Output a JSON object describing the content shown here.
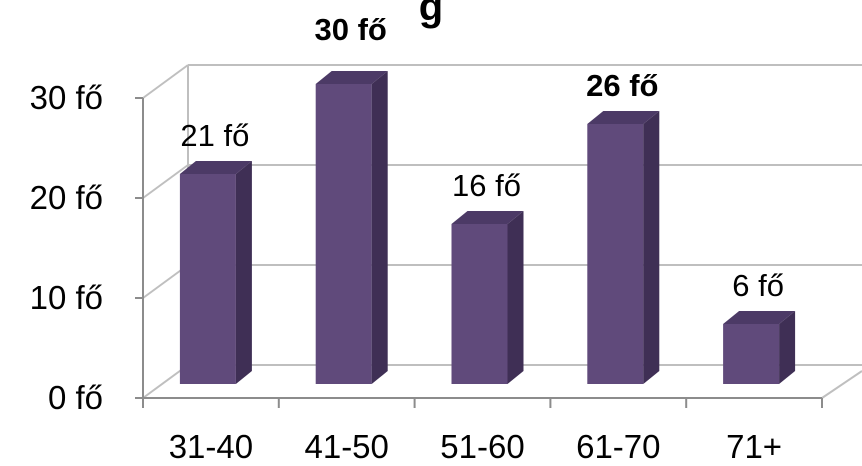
{
  "title_fragment": "g",
  "chart_data": {
    "type": "bar",
    "style": "3d-column",
    "title": "",
    "xlabel": "",
    "ylabel": "",
    "categories": [
      "31-40",
      "41-50",
      "51-60",
      "61-70",
      "71+"
    ],
    "values": [
      21,
      30,
      16,
      26,
      6
    ],
    "data_labels": [
      "21 fő",
      "30 fő",
      "16 fő",
      "26 fő",
      "6 fő"
    ],
    "bold_labels": [
      false,
      true,
      false,
      true,
      false
    ],
    "y_ticks": [
      0,
      10,
      20,
      30
    ],
    "y_tick_labels": [
      "0 fő",
      "10 fő",
      "20 fő",
      "30 fő"
    ],
    "ylim": [
      0,
      30
    ],
    "grid": true,
    "legend": "none",
    "colors": {
      "bar_front": "#604a7b",
      "bar_side": "#3f2f55",
      "bar_top": "#4c3a66",
      "grid": "#bfbfbf",
      "axis": "#8c8c8c"
    }
  }
}
